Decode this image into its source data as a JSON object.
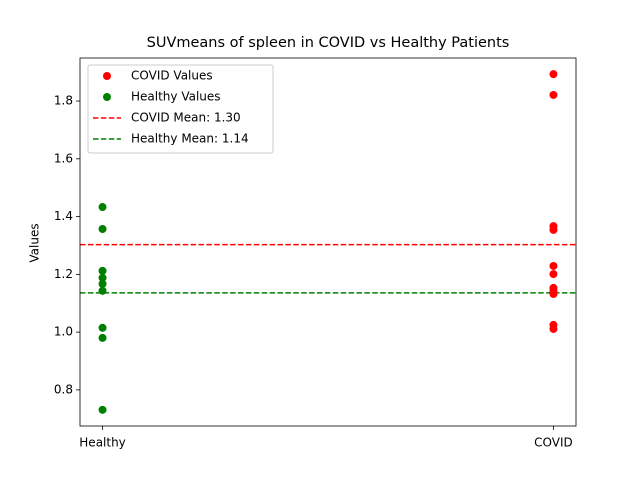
{
  "chart_data": {
    "type": "scatter",
    "title": "SUVmeans of spleen in COVID vs Healthy Patients",
    "y_label": "Values",
    "categories": [
      "Healthy",
      "COVID"
    ],
    "series": [
      {
        "name": "COVID Values",
        "color": "#ff0000",
        "category": "COVID",
        "values": [
          1.893,
          1.821,
          1.367,
          1.354,
          1.229,
          1.201,
          1.153,
          1.143,
          1.132,
          1.025,
          1.011
        ]
      },
      {
        "name": "Healthy Values",
        "color": "#008000",
        "category": "Healthy",
        "values": [
          1.433,
          1.357,
          1.212,
          1.188,
          1.167,
          1.143,
          1.015,
          0.98,
          0.731
        ]
      }
    ],
    "reference_lines": [
      {
        "name": "COVID Mean: 1.30",
        "value": 1.303,
        "color": "#ff0000"
      },
      {
        "name": "Healthy Mean: 1.14",
        "value": 1.136,
        "color": "#008000"
      }
    ],
    "xlim": [
      -0.05,
      1.05
    ],
    "ylim": [
      0.675,
      1.949
    ],
    "yticks": [
      0.8,
      {
        "value": 1.0,
        "label": "1.0"
      },
      1.2,
      1.4,
      1.6,
      1.8
    ],
    "grid": false,
    "legend": "upper left"
  }
}
